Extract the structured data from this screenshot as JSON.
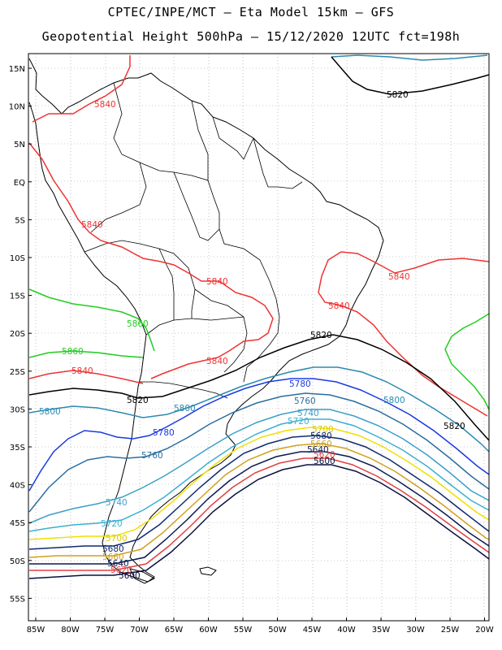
{
  "title_line1": "CPTEC/INPE/MCT –  Eta Model 15km – GFS",
  "title_line2": "Geopotential Height 500hPa – 15/12/2020 12UTC fct=198h",
  "lat_ticks": [
    "15N",
    "10N",
    "5N",
    "EQ",
    "5S",
    "10S",
    "15S",
    "20S",
    "25S",
    "30S",
    "35S",
    "40S",
    "45S",
    "50S",
    "55S"
  ],
  "lon_ticks": [
    "85W",
    "80W",
    "75W",
    "70W",
    "65W",
    "60W",
    "55W",
    "50W",
    "45W",
    "40W",
    "35W",
    "30W",
    "25W",
    "20W"
  ],
  "contour_labels": {
    "c5820_n": "5820",
    "c5840_a": "5840",
    "c5840_b": "5840",
    "c5840_c": "5840",
    "c5840_d": "5840",
    "c5840_e": "5840",
    "c5840_f": "5840",
    "c5840_g": "5840",
    "c5860_a": "5860",
    "c5860_b": "5860",
    "c5820_a": "5820",
    "c5820_b": "5820",
    "c5820_c": "5820",
    "c5800_a": "5800",
    "c5800_b": "5800",
    "c5800_c": "5800",
    "c5780_a": "5780",
    "c5780_b": "5780",
    "c5760_a": "5760",
    "c5760_b": "5760",
    "c5740_a": "5740",
    "c5740_b": "5740",
    "c5720_a": "5720",
    "c5720_b": "5720",
    "c5700_a": "5700",
    "c5700_b": "5700",
    "c5680_a": "5680",
    "c5680_b": "5680",
    "c5660_a": "5660",
    "c5660_b": "5660",
    "c5640_a": "5640",
    "c5640_b": "5640",
    "c5620_a": "5620",
    "c5620_b": "5620",
    "c5600_a": "5600",
    "c5600_b": "5600"
  },
  "colors": {
    "c5860": "#22cc22",
    "c5840": "#ee3333",
    "c5820": "#000000",
    "c5800": "#2a8ab0",
    "c5780": "#1a3ae0",
    "c5760": "#2a6ea0",
    "c5740": "#3aa0c8",
    "c5720": "#3bb0d0",
    "c5700": "#f0e000",
    "c5680": "#d0a020",
    "c5660": "#102a70",
    "c5640": "#0a1a50",
    "c5620": "#e04040",
    "c5600": "#0a1040"
  }
}
